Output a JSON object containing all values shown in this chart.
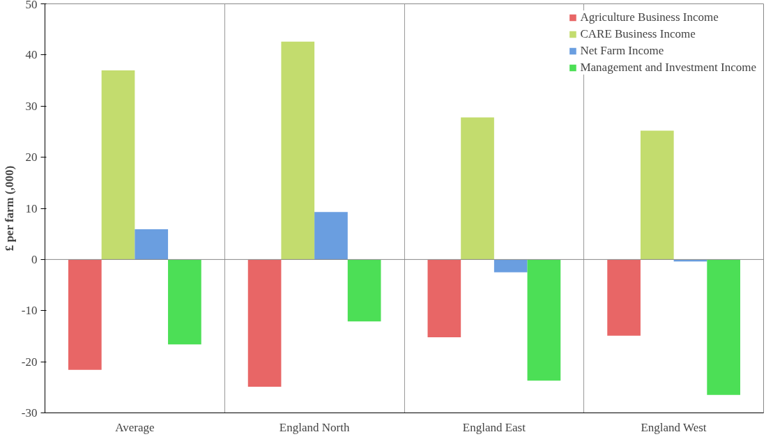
{
  "chart_data": {
    "type": "bar",
    "ylabel": "£ per farm (,000)",
    "categories": [
      "Average",
      "England North",
      "England East",
      "England West"
    ],
    "series": [
      {
        "name": "Agriculture Business Income",
        "color": "#e86666",
        "values": [
          -21.6,
          -24.9,
          -15.2,
          -14.9
        ]
      },
      {
        "name": "CARE Business Income",
        "color": "#c3dc6e",
        "values": [
          37.0,
          42.6,
          27.8,
          25.2
        ]
      },
      {
        "name": "Net Farm Income",
        "color": "#6a9ee0",
        "values": [
          5.9,
          9.3,
          -2.5,
          -0.4
        ]
      },
      {
        "name": "Management and Investment Income",
        "color": "#4cdf56",
        "values": [
          -16.6,
          -12.1,
          -23.7,
          -26.5
        ]
      }
    ],
    "ylim": [
      -30,
      50
    ],
    "yticks": [
      -30,
      -20,
      -10,
      0,
      10,
      20,
      30,
      40,
      50
    ],
    "grid": "x",
    "legend": "top right"
  }
}
